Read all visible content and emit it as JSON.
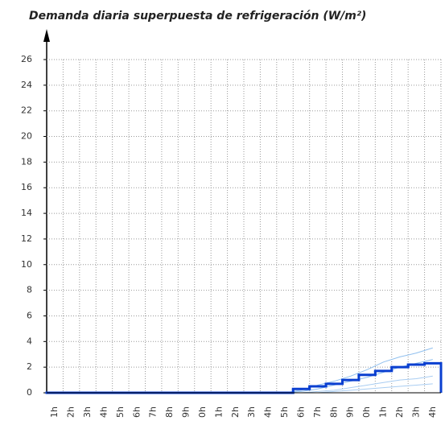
{
  "chart_data": {
    "type": "line",
    "title": "Demanda diaria superpuesta de refrigeración (W/m²)",
    "categories": [
      "1h",
      "2h",
      "3h",
      "4h",
      "5h",
      "6h",
      "7h",
      "8h",
      "9h",
      "0h",
      "1h",
      "2h",
      "3h",
      "4h",
      "5h",
      "6h",
      "7h",
      "8h",
      "9h",
      "0h",
      "1h",
      "2h",
      "3h",
      "4h"
    ],
    "series": [
      {
        "color": "#8fbfee",
        "step": false,
        "width": 1,
        "values": [
          0,
          0,
          0,
          0,
          0,
          0,
          0,
          0,
          0,
          0,
          0,
          0,
          0,
          0,
          0,
          0.2,
          0.6,
          0.9,
          1.3,
          1.8,
          2.4,
          2.8,
          3.1,
          3.5
        ]
      },
      {
        "color": "#8fbfee",
        "step": false,
        "width": 1,
        "values": [
          0,
          0,
          0,
          0,
          0,
          0,
          0,
          0,
          0,
          0,
          0,
          0,
          0,
          0,
          0,
          0.1,
          0.3,
          0.6,
          0.9,
          1.2,
          1.6,
          2.0,
          2.3,
          2.6
        ]
      },
      {
        "color": "#a9cdf2",
        "step": false,
        "width": 1,
        "values": [
          0,
          0,
          0,
          0,
          0,
          0,
          0,
          0,
          0,
          0,
          0,
          0,
          0,
          0,
          0,
          0,
          0.1,
          0.2,
          0.4,
          0.6,
          0.8,
          1.0,
          1.1,
          1.3
        ]
      },
      {
        "color": "#a9cdf2",
        "step": false,
        "width": 1,
        "values": [
          0,
          0,
          0,
          0,
          0,
          0,
          0,
          0,
          0,
          0,
          0,
          0,
          0,
          0,
          0,
          0,
          0,
          0.1,
          0.2,
          0.3,
          0.4,
          0.5,
          0.6,
          0.7
        ]
      },
      {
        "color": "#0a3fd0",
        "step": true,
        "width": 3,
        "values": [
          0,
          0,
          0,
          0,
          0,
          0,
          0,
          0,
          0,
          0,
          0,
          0,
          0,
          0,
          0,
          0.3,
          0.5,
          0.7,
          1.0,
          1.4,
          1.7,
          2.0,
          2.2,
          2.3
        ]
      }
    ],
    "ylim": [
      0,
      26
    ],
    "yticks": [
      0,
      2,
      4,
      6,
      8,
      10,
      12,
      14,
      16,
      18,
      20,
      22,
      24,
      26
    ],
    "grid": true
  }
}
